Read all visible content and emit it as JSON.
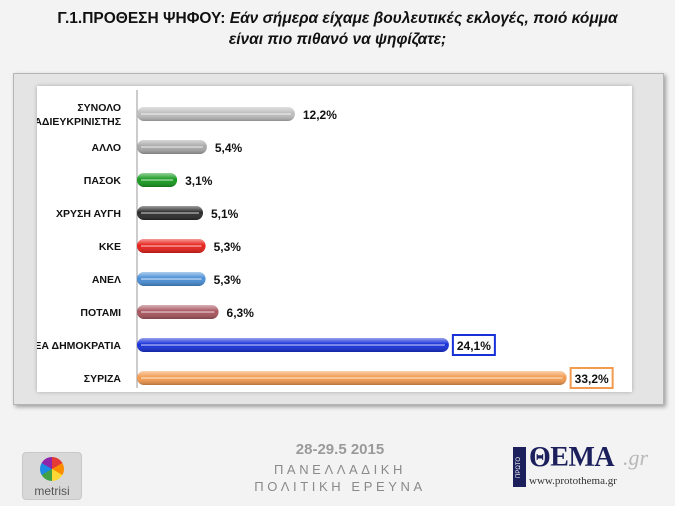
{
  "title": {
    "lead": "Γ.1.ΠΡΟΘΕΣΗ ΨΗΦΟΥ:",
    "question_line1": "Εάν σήμερα είχαμε βουλευτικές εκλογές, ποιό κόμμα",
    "question_line2": "είναι πιο πιθανό να ψηφίζατε;"
  },
  "chart_data": {
    "type": "bar",
    "orientation": "horizontal",
    "categories": [
      "ΣΥΝΟΛΟ ΑΔΙΕΥΚΡΙΝΙΣΤΗΣ",
      "ΑΛΛΟ",
      "ΠΑΣΟΚ",
      "ΧΡΥΣΗ ΑΥΓΗ",
      "ΚΚΕ",
      "ΑΝΕΛ",
      "ΠΟΤΑΜΙ",
      "ΝΕΑ ΔΗΜΟΚΡΑΤΙΑ",
      "ΣΥΡΙΖΑ"
    ],
    "category_lines": [
      [
        "ΣΥΝΟΛΟ",
        "ΑΔΙΕΥΚΡΙΝΙΣΤΗΣ"
      ],
      [
        "ΑΛΛΟ"
      ],
      [
        "ΠΑΣΟΚ"
      ],
      [
        "ΧΡΥΣΗ ΑΥΓΗ"
      ],
      [
        "ΚΚΕ"
      ],
      [
        "ΑΝΕΛ"
      ],
      [
        "ΠΟΤΑΜΙ"
      ],
      [
        "ΝΕΑ ΔΗΜΟΚΡΑΤΙΑ"
      ],
      [
        "ΣΥΡΙΖΑ"
      ]
    ],
    "values": [
      12.2,
      5.4,
      3.1,
      5.1,
      5.3,
      5.3,
      6.3,
      24.1,
      33.2
    ],
    "value_labels": [
      "12,2%",
      "5,4%",
      "3,1%",
      "5,1%",
      "5,3%",
      "5,3%",
      "6,3%",
      "24,1%",
      "33,2%"
    ],
    "colors": [
      "#bdbdbd",
      "#a8a8a8",
      "#179a1f",
      "#2b2b2b",
      "#e8201a",
      "#4a8fd6",
      "#a8555e",
      "#1730d8",
      "#f29a4f"
    ],
    "boxed_labels": [
      7,
      8
    ],
    "box_colors": [
      "#1730d8",
      "#f29a4f"
    ],
    "xlim": [
      0,
      34
    ],
    "grid": false,
    "legend": "none"
  },
  "footer": {
    "date": "28-29.5 2015",
    "line1": "ΠΑΝΕΛΛΑΔΙΚΗ",
    "line2": "ΠΟΛΙΤΙΚΗ ΕΡΕΥΝΑ",
    "metrisi_logo": "metrisi",
    "thema_badge": "ΠΡΩΤΟ",
    "thema_logo": "ΘΕΜΑ",
    "thema_gr": ".gr",
    "thema_url": "www.protothema.gr"
  }
}
